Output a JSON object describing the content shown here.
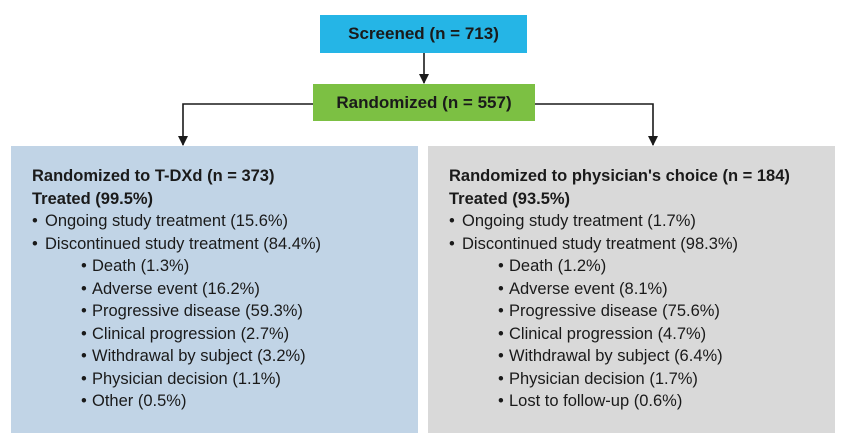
{
  "nodes": {
    "screened": "Screened (n = 713)",
    "randomized": "Randomized (n = 557)"
  },
  "arms": [
    {
      "title": "Randomized to T-DXd (n = 373)",
      "treated": "Treated (99.5%)",
      "ongoing": "Ongoing study treatment (15.6%)",
      "discontinued": "Discontinued study treatment (84.4%)",
      "reasons": [
        "Death (1.3%)",
        "Adverse event (16.2%)",
        "Progressive disease (59.3%)",
        "Clinical progression (2.7%)",
        "Withdrawal by subject (3.2%)",
        "Physician decision (1.1%)",
        "Other (0.5%)"
      ]
    },
    {
      "title": "Randomized to physician's choice (n = 184)",
      "treated": "Treated (93.5%)",
      "ongoing": "Ongoing study treatment (1.7%)",
      "discontinued": "Discontinued study treatment (98.3%)",
      "reasons": [
        "Death (1.2%)",
        "Adverse event (8.1%)",
        "Progressive disease (75.6%)",
        "Clinical progression (4.7%)",
        "Withdrawal by subject (6.4%)",
        "Physician decision (1.7%)",
        "Lost to follow-up (0.6%)"
      ]
    }
  ],
  "colors": {
    "screened": "#25b5e6",
    "randomized": "#7cc043",
    "arm_tdxd": "#c1d4e6",
    "arm_pc": "#d9d9d9"
  }
}
